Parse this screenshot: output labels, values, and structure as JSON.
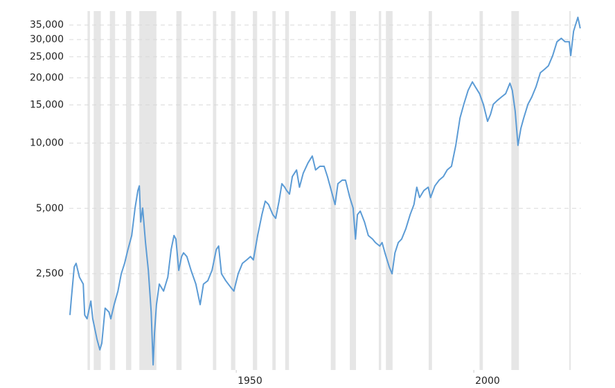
{
  "chart_data": {
    "type": "line",
    "log_scale": true,
    "grid": true,
    "recession_color": "#e6e6e6",
    "recessions": [
      [
        1918.7,
        1919.2
      ],
      [
        1920.0,
        1921.5
      ],
      [
        1923.4,
        1924.5
      ],
      [
        1926.8,
        1927.9
      ],
      [
        1929.6,
        1933.2
      ],
      [
        1937.4,
        1938.5
      ],
      [
        1945.1,
        1945.8
      ],
      [
        1948.9,
        1949.8
      ],
      [
        1953.5,
        1954.4
      ],
      [
        1957.6,
        1958.3
      ],
      [
        1960.3,
        1961.1
      ],
      [
        1969.9,
        1970.9
      ],
      [
        1973.9,
        1975.2
      ],
      [
        1980.0,
        1980.5
      ],
      [
        1981.5,
        1982.9
      ],
      [
        1990.5,
        1991.2
      ],
      [
        2001.2,
        2001.9
      ],
      [
        2007.9,
        2009.5
      ],
      [
        2020.1,
        2020.4
      ]
    ],
    "xlim": [
      1915,
      2022.5
    ],
    "xticks": [
      1950,
      2000
    ],
    "ylim": [
      900,
      40000
    ],
    "yticks": [
      {
        "value": 2500,
        "label": "2,500"
      },
      {
        "value": 5000,
        "label": "5,000"
      },
      {
        "value": 10000,
        "label": "10,000"
      },
      {
        "value": 15000,
        "label": "15,000"
      },
      {
        "value": 20000,
        "label": "20,000"
      },
      {
        "value": 25000,
        "label": "25,000"
      },
      {
        "value": 30000,
        "label": "30,000"
      },
      {
        "value": 35000,
        "label": "35,000"
      }
    ],
    "x": [
      1915.0,
      1915.3,
      1915.9,
      1916.3,
      1917.0,
      1917.8,
      1918.1,
      1918.6,
      1919.4,
      1919.8,
      1920.7,
      1921.3,
      1921.7,
      1922.4,
      1923.2,
      1923.6,
      1924.3,
      1925.1,
      1925.8,
      1926.5,
      1927.2,
      1928.0,
      1928.7,
      1929.3,
      1929.6,
      1929.9,
      1930.3,
      1930.9,
      1931.5,
      1932.1,
      1932.5,
      1932.8,
      1933.2,
      1933.8,
      1934.7,
      1935.6,
      1936.3,
      1936.9,
      1937.3,
      1937.9,
      1938.5,
      1938.9,
      1939.6,
      1940.5,
      1941.5,
      1942.4,
      1943.1,
      1944.0,
      1944.9,
      1945.8,
      1946.3,
      1946.9,
      1947.8,
      1948.8,
      1949.5,
      1950.4,
      1951.3,
      1952.2,
      1953.0,
      1953.6,
      1954.5,
      1955.4,
      1956.1,
      1956.8,
      1957.7,
      1958.3,
      1959.0,
      1959.6,
      1960.2,
      1960.6,
      1961.2,
      1961.8,
      1962.7,
      1963.3,
      1964.1,
      1965.1,
      1966.0,
      1966.7,
      1967.6,
      1968.5,
      1969.2,
      1970.2,
      1970.8,
      1971.4,
      1972.3,
      1973.0,
      1973.9,
      1974.6,
      1975.1,
      1975.5,
      1976.1,
      1977.0,
      1977.8,
      1978.7,
      1979.3,
      1980.2,
      1980.7,
      1981.3,
      1982.2,
      1982.8,
      1983.4,
      1984.1,
      1984.8,
      1985.7,
      1986.6,
      1987.4,
      1988.0,
      1988.6,
      1989.5,
      1990.4,
      1990.9,
      1991.8,
      1992.7,
      1993.6,
      1994.4,
      1995.3,
      1996.2,
      1997.1,
      1997.9,
      1998.8,
      1999.7,
      2000.3,
      2001.2,
      2002.0,
      2002.9,
      2003.5,
      2004.1,
      2004.9,
      2005.8,
      2006.7,
      2007.6,
      2008.1,
      2008.7,
      2009.3,
      2009.9,
      2010.5,
      2011.4,
      2012.2,
      2013.1,
      2014.0,
      2014.9,
      2015.7,
      2016.6,
      2017.5,
      2018.4,
      2019.2,
      2020.1,
      2020.4,
      2021.0,
      2021.9,
      2022.4
    ],
    "series": [
      {
        "color": "#5b9bd5",
        "values": [
          1612,
          1935,
          2690,
          2790,
          2410,
          2240,
          1612,
          1550,
          1870,
          1550,
          1245,
          1115,
          1195,
          1735,
          1665,
          1550,
          1800,
          2080,
          2500,
          2790,
          3230,
          3750,
          5020,
          6050,
          6350,
          4330,
          5020,
          3480,
          2590,
          1665,
          950,
          1335,
          1800,
          2240,
          2080,
          2410,
          3230,
          3750,
          3610,
          2590,
          3000,
          3120,
          3000,
          2590,
          2240,
          1800,
          2240,
          2320,
          2590,
          3230,
          3355,
          2500,
          2320,
          2170,
          2080,
          2500,
          2790,
          2895,
          3000,
          2895,
          3750,
          4680,
          5400,
          5210,
          4680,
          4500,
          5400,
          6500,
          6260,
          6050,
          5820,
          7010,
          7520,
          6260,
          7260,
          8100,
          8720,
          7520,
          7820,
          7820,
          7010,
          5820,
          5210,
          6500,
          6750,
          6750,
          5610,
          5020,
          3610,
          4680,
          4860,
          4330,
          3750,
          3610,
          3480,
          3355,
          3480,
          3120,
          2690,
          2500,
          3120,
          3480,
          3610,
          4030,
          4680,
          5210,
          6260,
          5610,
          6050,
          6260,
          5610,
          6350,
          6750,
          7010,
          7520,
          7820,
          9760,
          13050,
          15100,
          17500,
          19150,
          18200,
          16900,
          15100,
          12600,
          13550,
          15100,
          15700,
          16300,
          16900,
          18900,
          17500,
          14100,
          9760,
          11700,
          13050,
          15100,
          16300,
          18200,
          21100,
          21900,
          22700,
          25300,
          29300,
          30400,
          29300,
          29300,
          25300,
          32800,
          38000,
          33800
        ]
      }
    ]
  }
}
